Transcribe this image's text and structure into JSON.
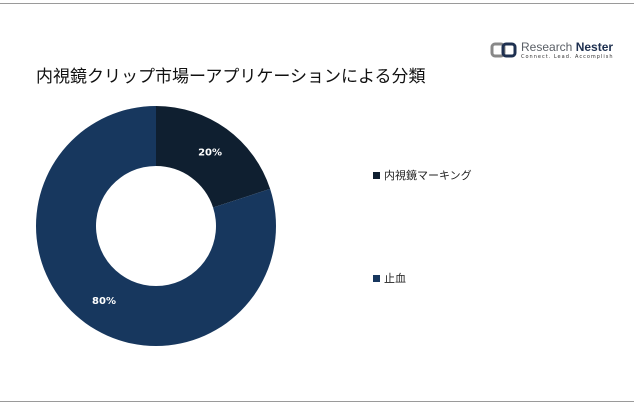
{
  "title": "内視鏡クリップ市場ーアプリケーションによる分類",
  "logo": {
    "name1": "Research",
    "name2": "Nester",
    "tagline": "Connect. Lead. Accomplish"
  },
  "chart_data": {
    "type": "pie",
    "subtype": "donut",
    "categories": [
      "内視鏡マーキング",
      "止血"
    ],
    "values": [
      20,
      80
    ],
    "labels": [
      "20%",
      "80%"
    ],
    "colors": [
      "#0f1f30",
      "#17375e"
    ],
    "legend_placement": "right"
  }
}
